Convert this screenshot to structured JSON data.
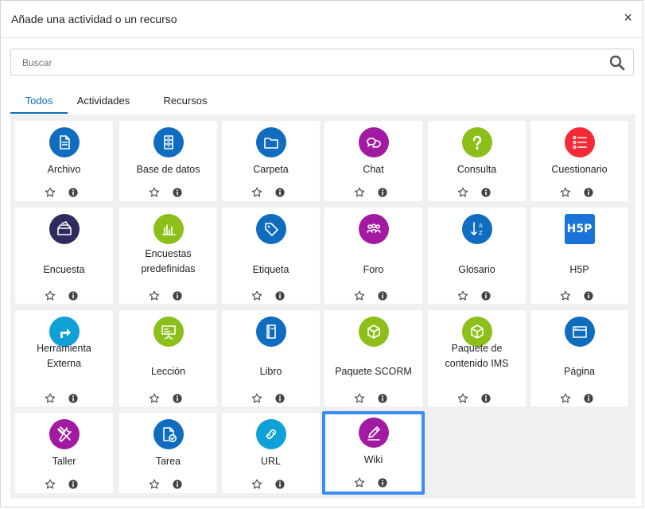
{
  "dialog": {
    "title": "Añade una actividad o un recurso",
    "close_glyph": "×"
  },
  "search": {
    "placeholder": "Buscar"
  },
  "tabs": [
    {
      "label": "Todos",
      "active": true
    },
    {
      "label": "Actividades",
      "active": false
    },
    {
      "label": "Recursos",
      "active": false
    }
  ],
  "colors": {
    "blue": "#0f6cbf",
    "purple": "#a11aa1",
    "green": "#8cbf1a",
    "red": "#f22b36",
    "navy": "#2f2b5e",
    "teal": "#0fa0d6",
    "h5p": "#1a73d9",
    "selected_border": "#3d8cf0"
  },
  "items": [
    {
      "label": "Archivo",
      "icon": "file-icon",
      "color": "blue"
    },
    {
      "label": "Base de datos",
      "icon": "database-icon",
      "color": "blue"
    },
    {
      "label": "Carpeta",
      "icon": "folder-icon",
      "color": "blue"
    },
    {
      "label": "Chat",
      "icon": "chat-icon",
      "color": "purple"
    },
    {
      "label": "Consulta",
      "icon": "question-icon",
      "color": "green"
    },
    {
      "label": "Cuestionario",
      "icon": "checklist-icon",
      "color": "red"
    },
    {
      "label": "Encuesta",
      "icon": "ballot-box-icon",
      "color": "navy"
    },
    {
      "label": "Encuestas predefinidas",
      "icon": "bar-chart-icon",
      "color": "green"
    },
    {
      "label": "Etiqueta",
      "icon": "tag-icon",
      "color": "blue"
    },
    {
      "label": "Foro",
      "icon": "people-icon",
      "color": "purple"
    },
    {
      "label": "Glosario",
      "icon": "sort-az-icon",
      "color": "blue"
    },
    {
      "label": "H5P",
      "icon": "h5p-icon",
      "color": "h5p",
      "icon_text": "H5P"
    },
    {
      "label": "Herramienta Externa",
      "icon": "external-arrow-icon",
      "color": "teal"
    },
    {
      "label": "Lección",
      "icon": "presentation-icon",
      "color": "green"
    },
    {
      "label": "Libro",
      "icon": "book-icon",
      "color": "blue"
    },
    {
      "label": "Paquete SCORM",
      "icon": "package-icon",
      "color": "green"
    },
    {
      "label": "Paquete de contenido IMS",
      "icon": "package-icon",
      "color": "green"
    },
    {
      "label": "Página",
      "icon": "window-icon",
      "color": "blue"
    },
    {
      "label": "Taller",
      "icon": "tools-icon",
      "color": "purple"
    },
    {
      "label": "Tarea",
      "icon": "assignment-icon",
      "color": "blue"
    },
    {
      "label": "URL",
      "icon": "link-icon",
      "color": "teal"
    },
    {
      "label": "Wiki",
      "icon": "pencil-icon",
      "color": "purple",
      "selected": true
    }
  ]
}
